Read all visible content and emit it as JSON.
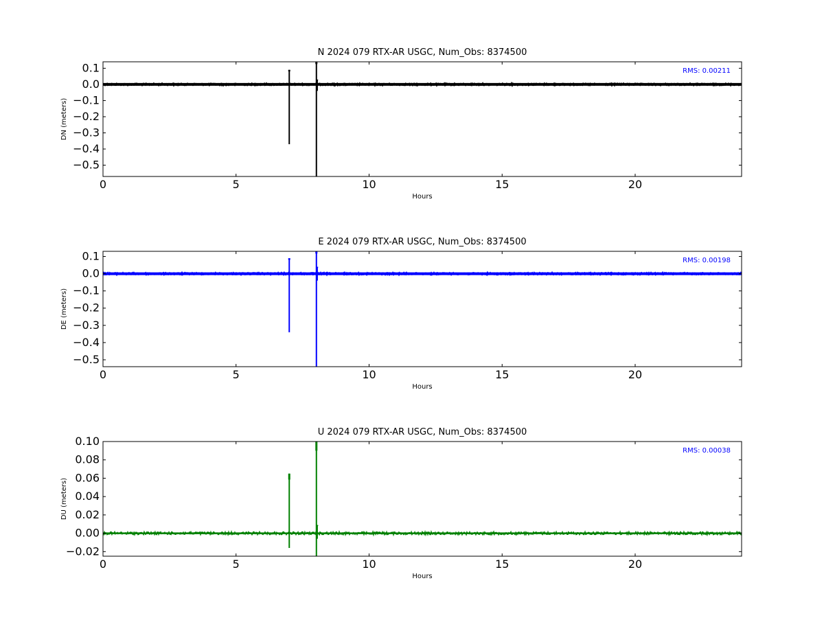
{
  "chart_data": [
    {
      "type": "line",
      "title": "N 2024 079 RTX-AR  USGC, Num_Obs: 8374500",
      "xlabel": "Hours",
      "ylabel": "DN (meters)",
      "xlim": [
        0,
        24
      ],
      "ylim": [
        -0.57,
        0.14
      ],
      "xticks": [
        0,
        5,
        10,
        15,
        20
      ],
      "yticks": [
        0.1,
        0.0,
        -0.1,
        -0.2,
        -0.3,
        -0.4,
        -0.5
      ],
      "ytick_labels": [
        "0.1",
        "0.0",
        "−0.1",
        "−0.2",
        "−0.3",
        "−0.4",
        "−0.5"
      ],
      "annotation": "RMS:  0.00211",
      "annotation_color": "#0000ff",
      "series_color": "#000000",
      "baseline": 0.0,
      "spikes": [
        {
          "x": 7.0,
          "min": -0.37,
          "max": 0.09
        },
        {
          "x": 8.02,
          "min": -0.57,
          "max": 0.14
        },
        {
          "x": 8.05,
          "min": -0.04,
          "max": 0.03
        }
      ]
    },
    {
      "type": "line",
      "title": "E 2024 079 RTX-AR  USGC, Num_Obs: 8374500",
      "xlabel": "Hours",
      "ylabel": "DE (meters)",
      "xlim": [
        0,
        24
      ],
      "ylim": [
        -0.54,
        0.13
      ],
      "xticks": [
        0,
        5,
        10,
        15,
        20
      ],
      "yticks": [
        0.1,
        0.0,
        -0.1,
        -0.2,
        -0.3,
        -0.4,
        -0.5
      ],
      "ytick_labels": [
        "0.1",
        "0.0",
        "−0.1",
        "−0.2",
        "−0.3",
        "−0.4",
        "−0.5"
      ],
      "annotation": "RMS:  0.00198",
      "annotation_color": "#0000ff",
      "series_color": "#0000ff",
      "baseline": 0.0,
      "spikes": [
        {
          "x": 7.0,
          "min": -0.34,
          "max": 0.09
        },
        {
          "x": 8.02,
          "min": -0.54,
          "max": 0.13
        },
        {
          "x": 8.05,
          "min": -0.04,
          "max": 0.04
        }
      ]
    },
    {
      "type": "line",
      "title": "U 2024 079 RTX-AR  USGC, Num_Obs: 8374500",
      "xlabel": "Hours",
      "ylabel": "DU (meters)",
      "xlim": [
        0,
        24
      ],
      "ylim": [
        -0.025,
        0.1
      ],
      "xticks": [
        0,
        5,
        10,
        15,
        20
      ],
      "yticks": [
        0.1,
        0.08,
        0.06,
        0.04,
        0.02,
        0.0,
        -0.02
      ],
      "ytick_labels": [
        "0.10",
        "0.08",
        "0.06",
        "0.04",
        "0.02",
        "0.00",
        "−0.02"
      ],
      "annotation": "RMS:  0.00038",
      "annotation_color": "#0000ff",
      "series_color": "#008000",
      "baseline": 0.0,
      "spikes": [
        {
          "x": 7.0,
          "min": -0.016,
          "max": 0.065
        },
        {
          "x": 8.02,
          "min": -0.025,
          "max": 0.1
        },
        {
          "x": 8.05,
          "min": -0.006,
          "max": 0.009
        }
      ]
    }
  ]
}
